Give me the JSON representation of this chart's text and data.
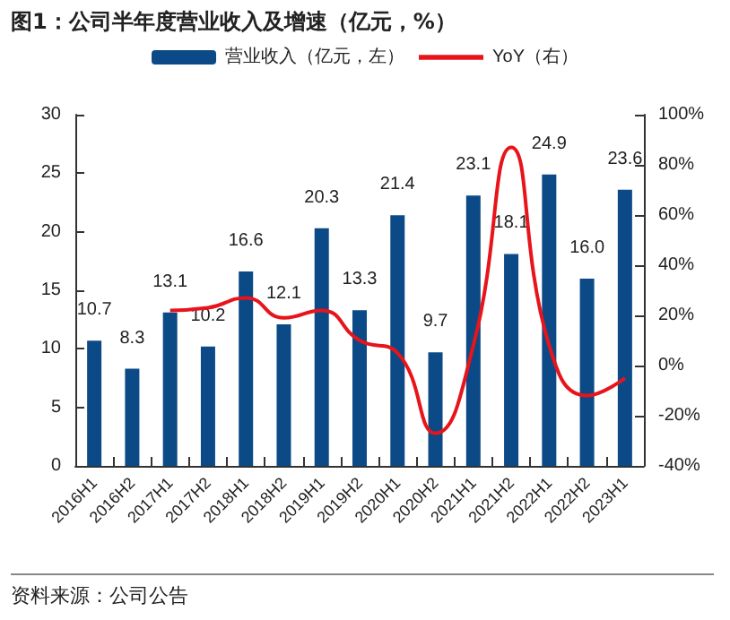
{
  "chart_data": {
    "type": "bar",
    "title": "图1：公司半年度营业收入及增速（亿元，%）",
    "categories": [
      "2016H1",
      "2016H2",
      "2017H1",
      "2017H2",
      "2018H1",
      "2018H2",
      "2019H1",
      "2019H2",
      "2020H1",
      "2020H2",
      "2021H1",
      "2021H2",
      "2022H1",
      "2022H2",
      "2023H1"
    ],
    "series": [
      {
        "name": "营业收入（亿元，左）",
        "color": "#0b4a86",
        "values": [
          10.7,
          8.3,
          13.1,
          10.2,
          16.6,
          12.1,
          20.3,
          13.3,
          21.4,
          9.7,
          23.1,
          18.1,
          24.9,
          16.0,
          23.6
        ],
        "value_labels": [
          "10.7",
          "8.3",
          "13.1",
          "10.2",
          "16.6",
          "12.1",
          "20.3",
          "13.3",
          "21.4",
          "9.7",
          "23.1",
          "18.1",
          "24.9",
          "16.0",
          "23.6"
        ]
      },
      {
        "name": "YoY（右）",
        "type": "line",
        "axis": "y2",
        "color": "#e8141b",
        "values": [
          null,
          null,
          22,
          23,
          27,
          19,
          22,
          10,
          5,
          -27,
          8,
          87,
          8,
          -12,
          -5
        ]
      }
    ],
    "ylim": [
      0,
      30
    ],
    "yticks": [
      0,
      5,
      10,
      15,
      20,
      25,
      30
    ],
    "y2lim": [
      -40,
      100
    ],
    "y2ticks": [
      {
        "value": -40,
        "label": "-40%"
      },
      {
        "value": -20,
        "label": "-20%"
      },
      {
        "value": 0,
        "label": "0%"
      },
      {
        "value": 20,
        "label": "20%"
      },
      {
        "value": 40,
        "label": "40%"
      },
      {
        "value": 60,
        "label": "60%"
      },
      {
        "value": 80,
        "label": "80%"
      },
      {
        "value": 100,
        "label": "100%"
      }
    ],
    "legend": "top",
    "grid": false,
    "marker": "none",
    "annotations": [
      "资料来源：公司公告"
    ]
  }
}
